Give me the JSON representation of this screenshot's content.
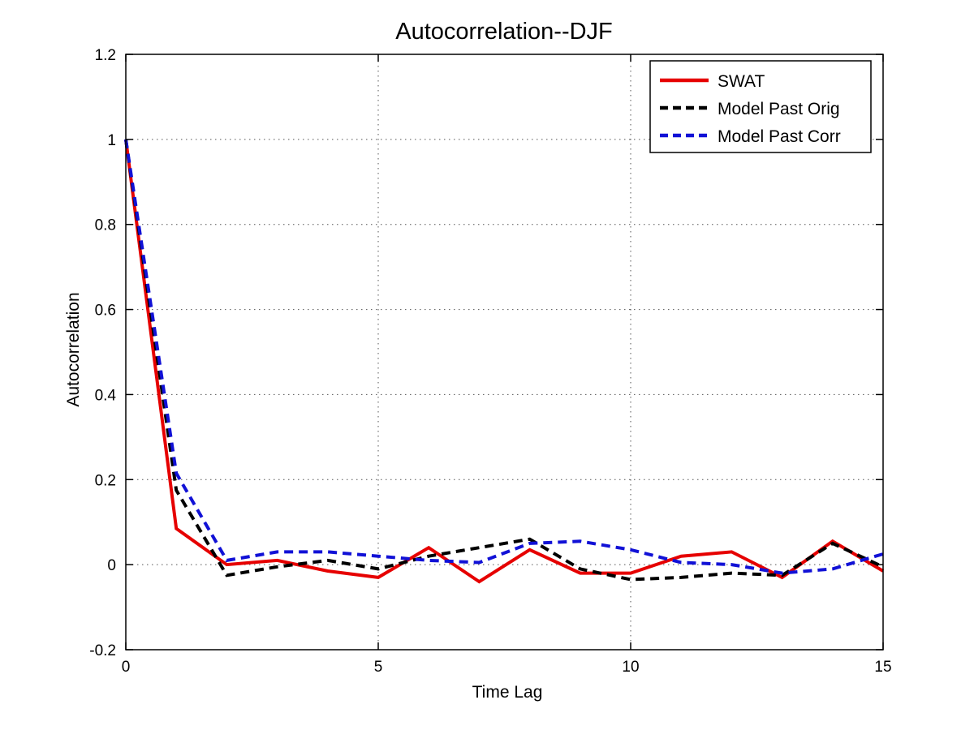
{
  "figure": {
    "background": "#ffffff"
  },
  "chart_data": {
    "type": "line",
    "title": "Autocorrelation--DJF",
    "xlabel": "Time Lag",
    "ylabel": "Autocorrelation",
    "xlim": [
      0,
      15
    ],
    "ylim": [
      -0.2,
      1.2
    ],
    "xticks": {
      "values": [
        0,
        5,
        10,
        15
      ],
      "labels": [
        "0",
        "5",
        "10",
        "15"
      ]
    },
    "yticks": {
      "values": [
        -0.2,
        0,
        0.2,
        0.4,
        0.6,
        0.8,
        1,
        1.2
      ],
      "labels": [
        "-0.2",
        "0",
        "0.2",
        "0.4",
        "0.6",
        "0.8",
        "1",
        "1.2"
      ]
    },
    "grid": {
      "show": true,
      "style": "dotted",
      "color": "#555555",
      "x_values": [
        5,
        10
      ],
      "y_values": [
        0,
        0.2,
        0.4,
        0.6,
        0.8,
        1
      ]
    },
    "legend": {
      "position": "top-right",
      "border_color": "#000000",
      "background": "#ffffff"
    },
    "x": [
      0,
      1,
      2,
      3,
      4,
      5,
      6,
      7,
      8,
      9,
      10,
      11,
      12,
      13,
      14,
      15
    ],
    "series": [
      {
        "name": "SWAT",
        "color": "#e60000",
        "style": "solid",
        "values": [
          1.0,
          0.085,
          0.0,
          0.01,
          -0.015,
          -0.03,
          0.04,
          -0.04,
          0.035,
          -0.02,
          -0.02,
          0.02,
          0.03,
          -0.03,
          0.055,
          -0.015
        ]
      },
      {
        "name": "Model Past Orig",
        "color": "#000000",
        "style": "dashed",
        "values": [
          1.0,
          0.175,
          -0.025,
          -0.005,
          0.01,
          -0.01,
          0.02,
          0.04,
          0.06,
          -0.01,
          -0.035,
          -0.03,
          -0.02,
          -0.025,
          0.05,
          -0.005
        ]
      },
      {
        "name": "Model Past Corr",
        "color": "#1111d6",
        "style": "dashed",
        "values": [
          1.0,
          0.215,
          0.01,
          0.03,
          0.03,
          0.02,
          0.01,
          0.005,
          0.05,
          0.055,
          0.035,
          0.005,
          0.0,
          -0.02,
          -0.01,
          0.025
        ]
      }
    ]
  }
}
